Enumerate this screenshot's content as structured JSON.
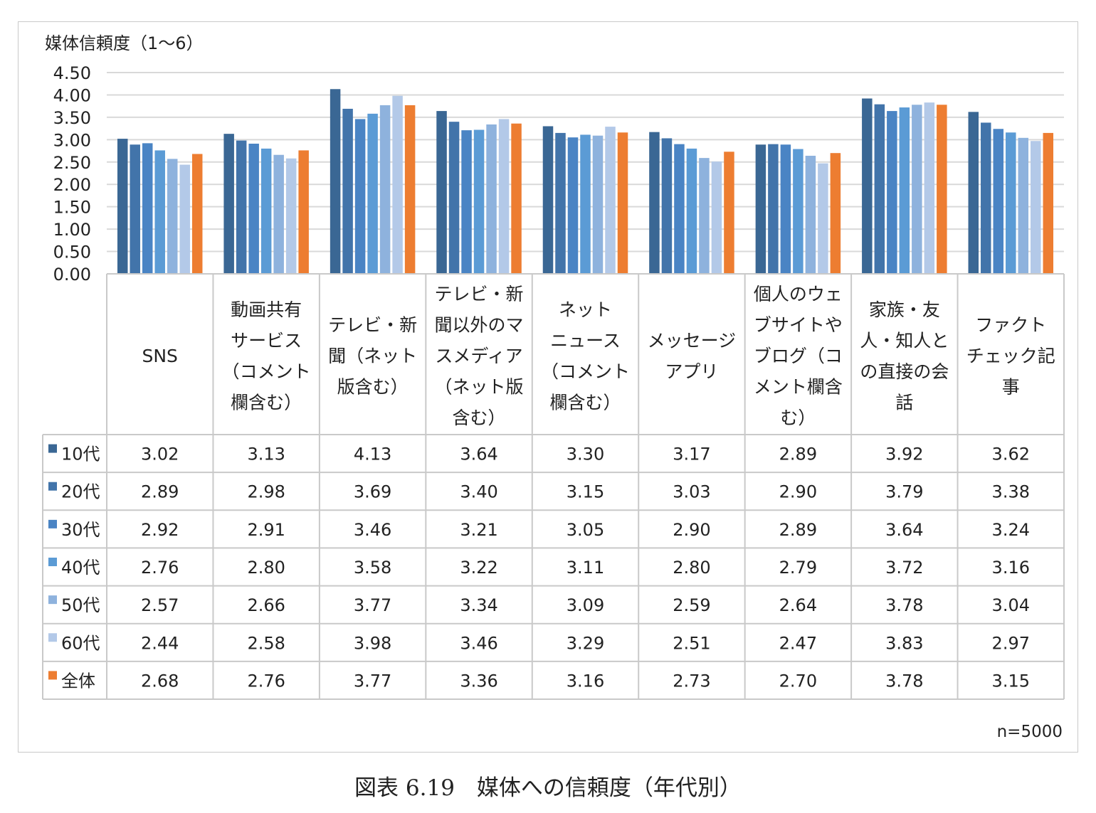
{
  "chart_data": {
    "type": "bar",
    "ylabel": "媒体信頼度（1〜6）",
    "ylim": [
      0,
      4.5
    ],
    "yticks": [
      "0.00",
      "0.50",
      "1.00",
      "1.50",
      "2.00",
      "2.50",
      "3.00",
      "3.50",
      "4.00",
      "4.50"
    ],
    "grid": true,
    "categories": [
      "SNS",
      "動画共有サービス（コメント欄含む）",
      "テレビ・新聞（ネット版含む）",
      "テレビ・新聞以外のマスメディア（ネット版含む）",
      "ネットニュース（コメント欄含む）",
      "メッセージアプリ",
      "個人のウェブサイトやブログ（コメント欄含む）",
      "家族・友人・知人との直接の会話",
      "ファクトチェック記事"
    ],
    "category_lines": [
      [
        "SNS"
      ],
      [
        "動画共有",
        "サービス",
        "（コメント",
        "欄含む）"
      ],
      [
        "テレビ・新",
        "聞（ネット",
        "版含む）"
      ],
      [
        "テレビ・新",
        "聞以外のマ",
        "スメディア",
        "（ネット版",
        "含む）"
      ],
      [
        "ネット",
        "ニュース",
        "（コメント",
        "欄含む）"
      ],
      [
        "メッセージ",
        "アプリ"
      ],
      [
        "個人のウェ",
        "ブサイトや",
        "ブログ（コ",
        "メント欄含",
        "む）"
      ],
      [
        "家族・友",
        "人・知人と",
        "の直接の会",
        "話"
      ],
      [
        "ファクト",
        "チェック記",
        "事"
      ]
    ],
    "series": [
      {
        "name": "10代",
        "color": "#3a6794",
        "values": [
          3.02,
          3.13,
          4.13,
          3.64,
          3.3,
          3.17,
          2.89,
          3.92,
          3.62
        ]
      },
      {
        "name": "20代",
        "color": "#4274aa",
        "values": [
          2.89,
          2.98,
          3.69,
          3.4,
          3.15,
          3.03,
          2.9,
          3.79,
          3.38
        ]
      },
      {
        "name": "30代",
        "color": "#4a84c4",
        "values": [
          2.92,
          2.91,
          3.46,
          3.21,
          3.05,
          2.9,
          2.89,
          3.64,
          3.24
        ]
      },
      {
        "name": "40代",
        "color": "#5b9bd5",
        "values": [
          2.76,
          2.8,
          3.58,
          3.22,
          3.11,
          2.8,
          2.79,
          3.72,
          3.16
        ]
      },
      {
        "name": "50代",
        "color": "#8eb2dd",
        "values": [
          2.57,
          2.66,
          3.77,
          3.34,
          3.09,
          2.59,
          2.64,
          3.78,
          3.04
        ]
      },
      {
        "name": "60代",
        "color": "#b3c9e8",
        "values": [
          2.44,
          2.58,
          3.98,
          3.46,
          3.29,
          2.51,
          2.47,
          3.83,
          2.97
        ]
      },
      {
        "name": "全体",
        "color": "#ed7d31",
        "values": [
          2.68,
          2.76,
          3.77,
          3.36,
          3.16,
          2.73,
          2.7,
          3.78,
          3.15
        ]
      }
    ],
    "note": "n=5000"
  },
  "caption": "図表 6.19　媒体への信頼度（年代別）"
}
